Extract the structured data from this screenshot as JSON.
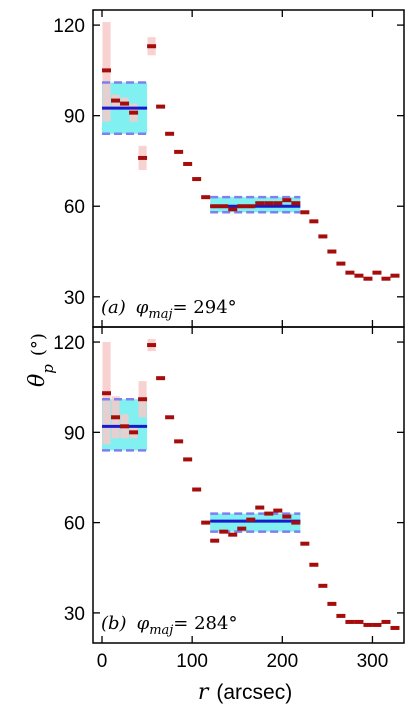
{
  "chart_data": [
    {
      "type": "scatter",
      "panel": "a",
      "annotation": {
        "label": "(a)",
        "symbol": "φ",
        "subscript": "maj",
        "value": "= 294°"
      },
      "xlim": [
        -10,
        335
      ],
      "ylim": [
        20,
        125
      ],
      "yticks": [
        30,
        60,
        90,
        120
      ],
      "xticks": [
        0,
        100,
        200,
        300
      ],
      "points": [
        {
          "x": 5,
          "y": 105,
          "lo": 88,
          "hi": 121
        },
        {
          "x": 15,
          "y": 95,
          "lo": 93,
          "hi": 97
        },
        {
          "x": 25,
          "y": 94,
          "lo": 92,
          "hi": 96
        },
        {
          "x": 35,
          "y": 91,
          "lo": 88,
          "hi": 94
        },
        {
          "x": 45,
          "y": 76,
          "lo": 72,
          "hi": 80
        },
        {
          "x": 55,
          "y": 113,
          "lo": 110,
          "hi": 116
        },
        {
          "x": 65,
          "y": 93
        },
        {
          "x": 75,
          "y": 84
        },
        {
          "x": 85,
          "y": 78
        },
        {
          "x": 95,
          "y": 74
        },
        {
          "x": 105,
          "y": 69
        },
        {
          "x": 115,
          "y": 63
        },
        {
          "x": 125,
          "y": 60
        },
        {
          "x": 135,
          "y": 60
        },
        {
          "x": 145,
          "y": 59
        },
        {
          "x": 155,
          "y": 60
        },
        {
          "x": 165,
          "y": 60
        },
        {
          "x": 175,
          "y": 61
        },
        {
          "x": 185,
          "y": 61
        },
        {
          "x": 195,
          "y": 61
        },
        {
          "x": 205,
          "y": 62
        },
        {
          "x": 215,
          "y": 61
        },
        {
          "x": 225,
          "y": 58
        },
        {
          "x": 235,
          "y": 55
        },
        {
          "x": 245,
          "y": 50
        },
        {
          "x": 255,
          "y": 45
        },
        {
          "x": 265,
          "y": 41
        },
        {
          "x": 275,
          "y": 38
        },
        {
          "x": 285,
          "y": 37
        },
        {
          "x": 295,
          "y": 36
        },
        {
          "x": 305,
          "y": 38
        },
        {
          "x": 315,
          "y": 36
        },
        {
          "x": 325,
          "y": 37
        }
      ],
      "fits": [
        {
          "x0": 0,
          "x1": 50,
          "mean": 92.5,
          "lo": 84,
          "hi": 101
        },
        {
          "x0": 120,
          "x1": 220,
          "mean": 60,
          "lo": 58,
          "hi": 63
        }
      ]
    },
    {
      "type": "scatter",
      "panel": "b",
      "annotation": {
        "label": "(b)",
        "symbol": "φ",
        "subscript": "maj",
        "value": "= 284°"
      },
      "xlim": [
        -10,
        335
      ],
      "ylim": [
        20,
        125
      ],
      "yticks": [
        30,
        60,
        90,
        120
      ],
      "xticks": [
        0,
        100,
        200,
        300
      ],
      "points": [
        {
          "x": 5,
          "y": 103,
          "lo": 86,
          "hi": 120
        },
        {
          "x": 15,
          "y": 95,
          "lo": 88,
          "hi": 102
        },
        {
          "x": 25,
          "y": 92,
          "lo": 88,
          "hi": 96
        },
        {
          "x": 35,
          "y": 90,
          "lo": 88,
          "hi": 92
        },
        {
          "x": 45,
          "y": 101,
          "lo": 95,
          "hi": 107
        },
        {
          "x": 55,
          "y": 119,
          "lo": 117,
          "hi": 121
        },
        {
          "x": 65,
          "y": 108
        },
        {
          "x": 75,
          "y": 95
        },
        {
          "x": 85,
          "y": 87
        },
        {
          "x": 95,
          "y": 81
        },
        {
          "x": 105,
          "y": 71
        },
        {
          "x": 115,
          "y": 60
        },
        {
          "x": 125,
          "y": 54
        },
        {
          "x": 135,
          "y": 57
        },
        {
          "x": 145,
          "y": 56
        },
        {
          "x": 155,
          "y": 58
        },
        {
          "x": 165,
          "y": 61
        },
        {
          "x": 175,
          "y": 65
        },
        {
          "x": 185,
          "y": 63
        },
        {
          "x": 195,
          "y": 64
        },
        {
          "x": 205,
          "y": 62
        },
        {
          "x": 215,
          "y": 60
        },
        {
          "x": 225,
          "y": 53
        },
        {
          "x": 235,
          "y": 46
        },
        {
          "x": 245,
          "y": 39
        },
        {
          "x": 255,
          "y": 33
        },
        {
          "x": 265,
          "y": 29
        },
        {
          "x": 275,
          "y": 27
        },
        {
          "x": 285,
          "y": 27
        },
        {
          "x": 295,
          "y": 26
        },
        {
          "x": 305,
          "y": 26
        },
        {
          "x": 315,
          "y": 27
        },
        {
          "x": 325,
          "y": 25
        }
      ],
      "fits": [
        {
          "x0": 0,
          "x1": 50,
          "mean": 92,
          "lo": 84,
          "hi": 101
        },
        {
          "x0": 120,
          "x1": 220,
          "mean": 60.5,
          "lo": 57,
          "hi": 63
        }
      ]
    }
  ],
  "axes": {
    "ylabel_symbol": "θ",
    "ylabel_sub": "p",
    "ylabel_unit": "(°)",
    "xlabel_symbol": "r",
    "xlabel_unit": "(arcsec)"
  },
  "colors": {
    "point": "#a50d0d",
    "error_band": "#f7c9c9",
    "fit_line": "#1a1acc",
    "fit_band": "#80f0f0",
    "fit_bounds": "#7f7fee"
  }
}
